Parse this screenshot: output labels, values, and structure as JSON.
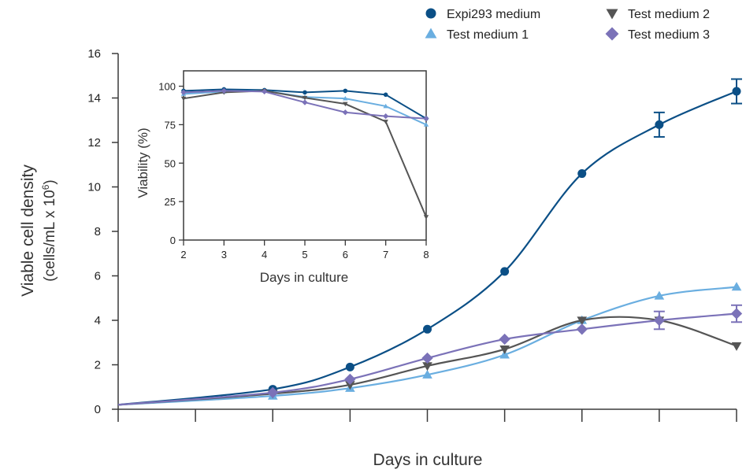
{
  "chart_data": [
    {
      "type": "line",
      "title": "",
      "xlabel": "Days in culture",
      "ylabel": "Viable cell density",
      "ylabel_unit_prefix": "(cells/mL x 10",
      "ylabel_unit_exponent": "6",
      "ylabel_unit_suffix": ")",
      "xlim": [
        0,
        8
      ],
      "ylim": [
        0,
        16
      ],
      "x_ticks": [
        0,
        1,
        2,
        3,
        4,
        5,
        6,
        7,
        8
      ],
      "y_ticks": [
        0,
        2,
        4,
        6,
        8,
        10,
        12,
        14,
        16
      ],
      "y_tick_labels": [
        "0",
        "2",
        "4",
        "6",
        "8",
        "10",
        "12",
        "14",
        "16"
      ],
      "grid": false,
      "legend_position": "top-right",
      "series": [
        {
          "name": "Expi293 medium",
          "color": "#0b4f86",
          "marker": "circle",
          "x": [
            0,
            2,
            3,
            4,
            5,
            6,
            7,
            8
          ],
          "y": [
            0.2,
            0.9,
            1.9,
            3.6,
            6.2,
            10.6,
            12.8,
            14.3
          ],
          "error": [
            0,
            0,
            0,
            0,
            0,
            0,
            0.55,
            0.55
          ]
        },
        {
          "name": "Test medium 1",
          "color": "#6aaee0",
          "marker": "triangle-up",
          "x": [
            0,
            2,
            3,
            4,
            5,
            6,
            7,
            8
          ],
          "y": [
            0.2,
            0.6,
            0.95,
            1.55,
            2.45,
            4.0,
            5.1,
            5.5
          ],
          "error": [
            0,
            0,
            0,
            0,
            0,
            0,
            0,
            0
          ]
        },
        {
          "name": "Test medium 2",
          "color": "#555555",
          "marker": "triangle-down",
          "x": [
            0,
            2,
            3,
            4,
            5,
            6,
            7,
            8
          ],
          "y": [
            0.2,
            0.7,
            1.1,
            1.95,
            2.7,
            4.0,
            4.0,
            2.85
          ],
          "error": [
            0,
            0,
            0,
            0,
            0,
            0,
            0,
            0
          ]
        },
        {
          "name": "Test medium 3",
          "color": "#7b72b8",
          "marker": "diamond",
          "x": [
            0,
            2,
            3,
            4,
            5,
            6,
            7,
            8
          ],
          "y": [
            0.2,
            0.75,
            1.35,
            2.3,
            3.15,
            3.6,
            4.0,
            4.3
          ],
          "error": [
            0,
            0,
            0,
            0,
            0,
            0,
            0.4,
            0.38
          ]
        }
      ]
    },
    {
      "type": "line",
      "title": "",
      "xlabel": "Days in culture",
      "ylabel": "Viability (%)",
      "xlim": [
        2,
        8
      ],
      "ylim": [
        0,
        110
      ],
      "x_ticks": [
        2,
        3,
        4,
        5,
        6,
        7,
        8
      ],
      "x_tick_labels": [
        "2",
        "3",
        "4",
        "5",
        "6",
        "7",
        "8"
      ],
      "y_ticks": [
        0,
        25,
        50,
        75,
        100
      ],
      "y_tick_labels": [
        "0",
        "25",
        "50",
        "75",
        "100"
      ],
      "grid": false,
      "series": [
        {
          "name": "Expi293 medium",
          "color": "#0b4f86",
          "marker": "circle",
          "x": [
            2,
            3,
            4,
            5,
            6,
            7,
            8
          ],
          "y": [
            97,
            98,
            97.5,
            96,
            97,
            94.5,
            79
          ]
        },
        {
          "name": "Test medium 1",
          "color": "#6aaee0",
          "marker": "triangle-up",
          "x": [
            2,
            3,
            4,
            5,
            6,
            7,
            8
          ],
          "y": [
            95,
            96.5,
            97,
            93,
            92,
            87,
            75
          ]
        },
        {
          "name": "Test medium 2",
          "color": "#555555",
          "marker": "triangle-down",
          "x": [
            2,
            3,
            4,
            5,
            6,
            7,
            8
          ],
          "y": [
            92,
            96,
            97,
            92.5,
            88.5,
            77,
            15
          ]
        },
        {
          "name": "Test medium 3",
          "color": "#7b72b8",
          "marker": "diamond",
          "x": [
            2,
            3,
            4,
            5,
            6,
            7,
            8
          ],
          "y": [
            96,
            97,
            96.5,
            89.5,
            83,
            80.5,
            79
          ]
        }
      ]
    }
  ]
}
